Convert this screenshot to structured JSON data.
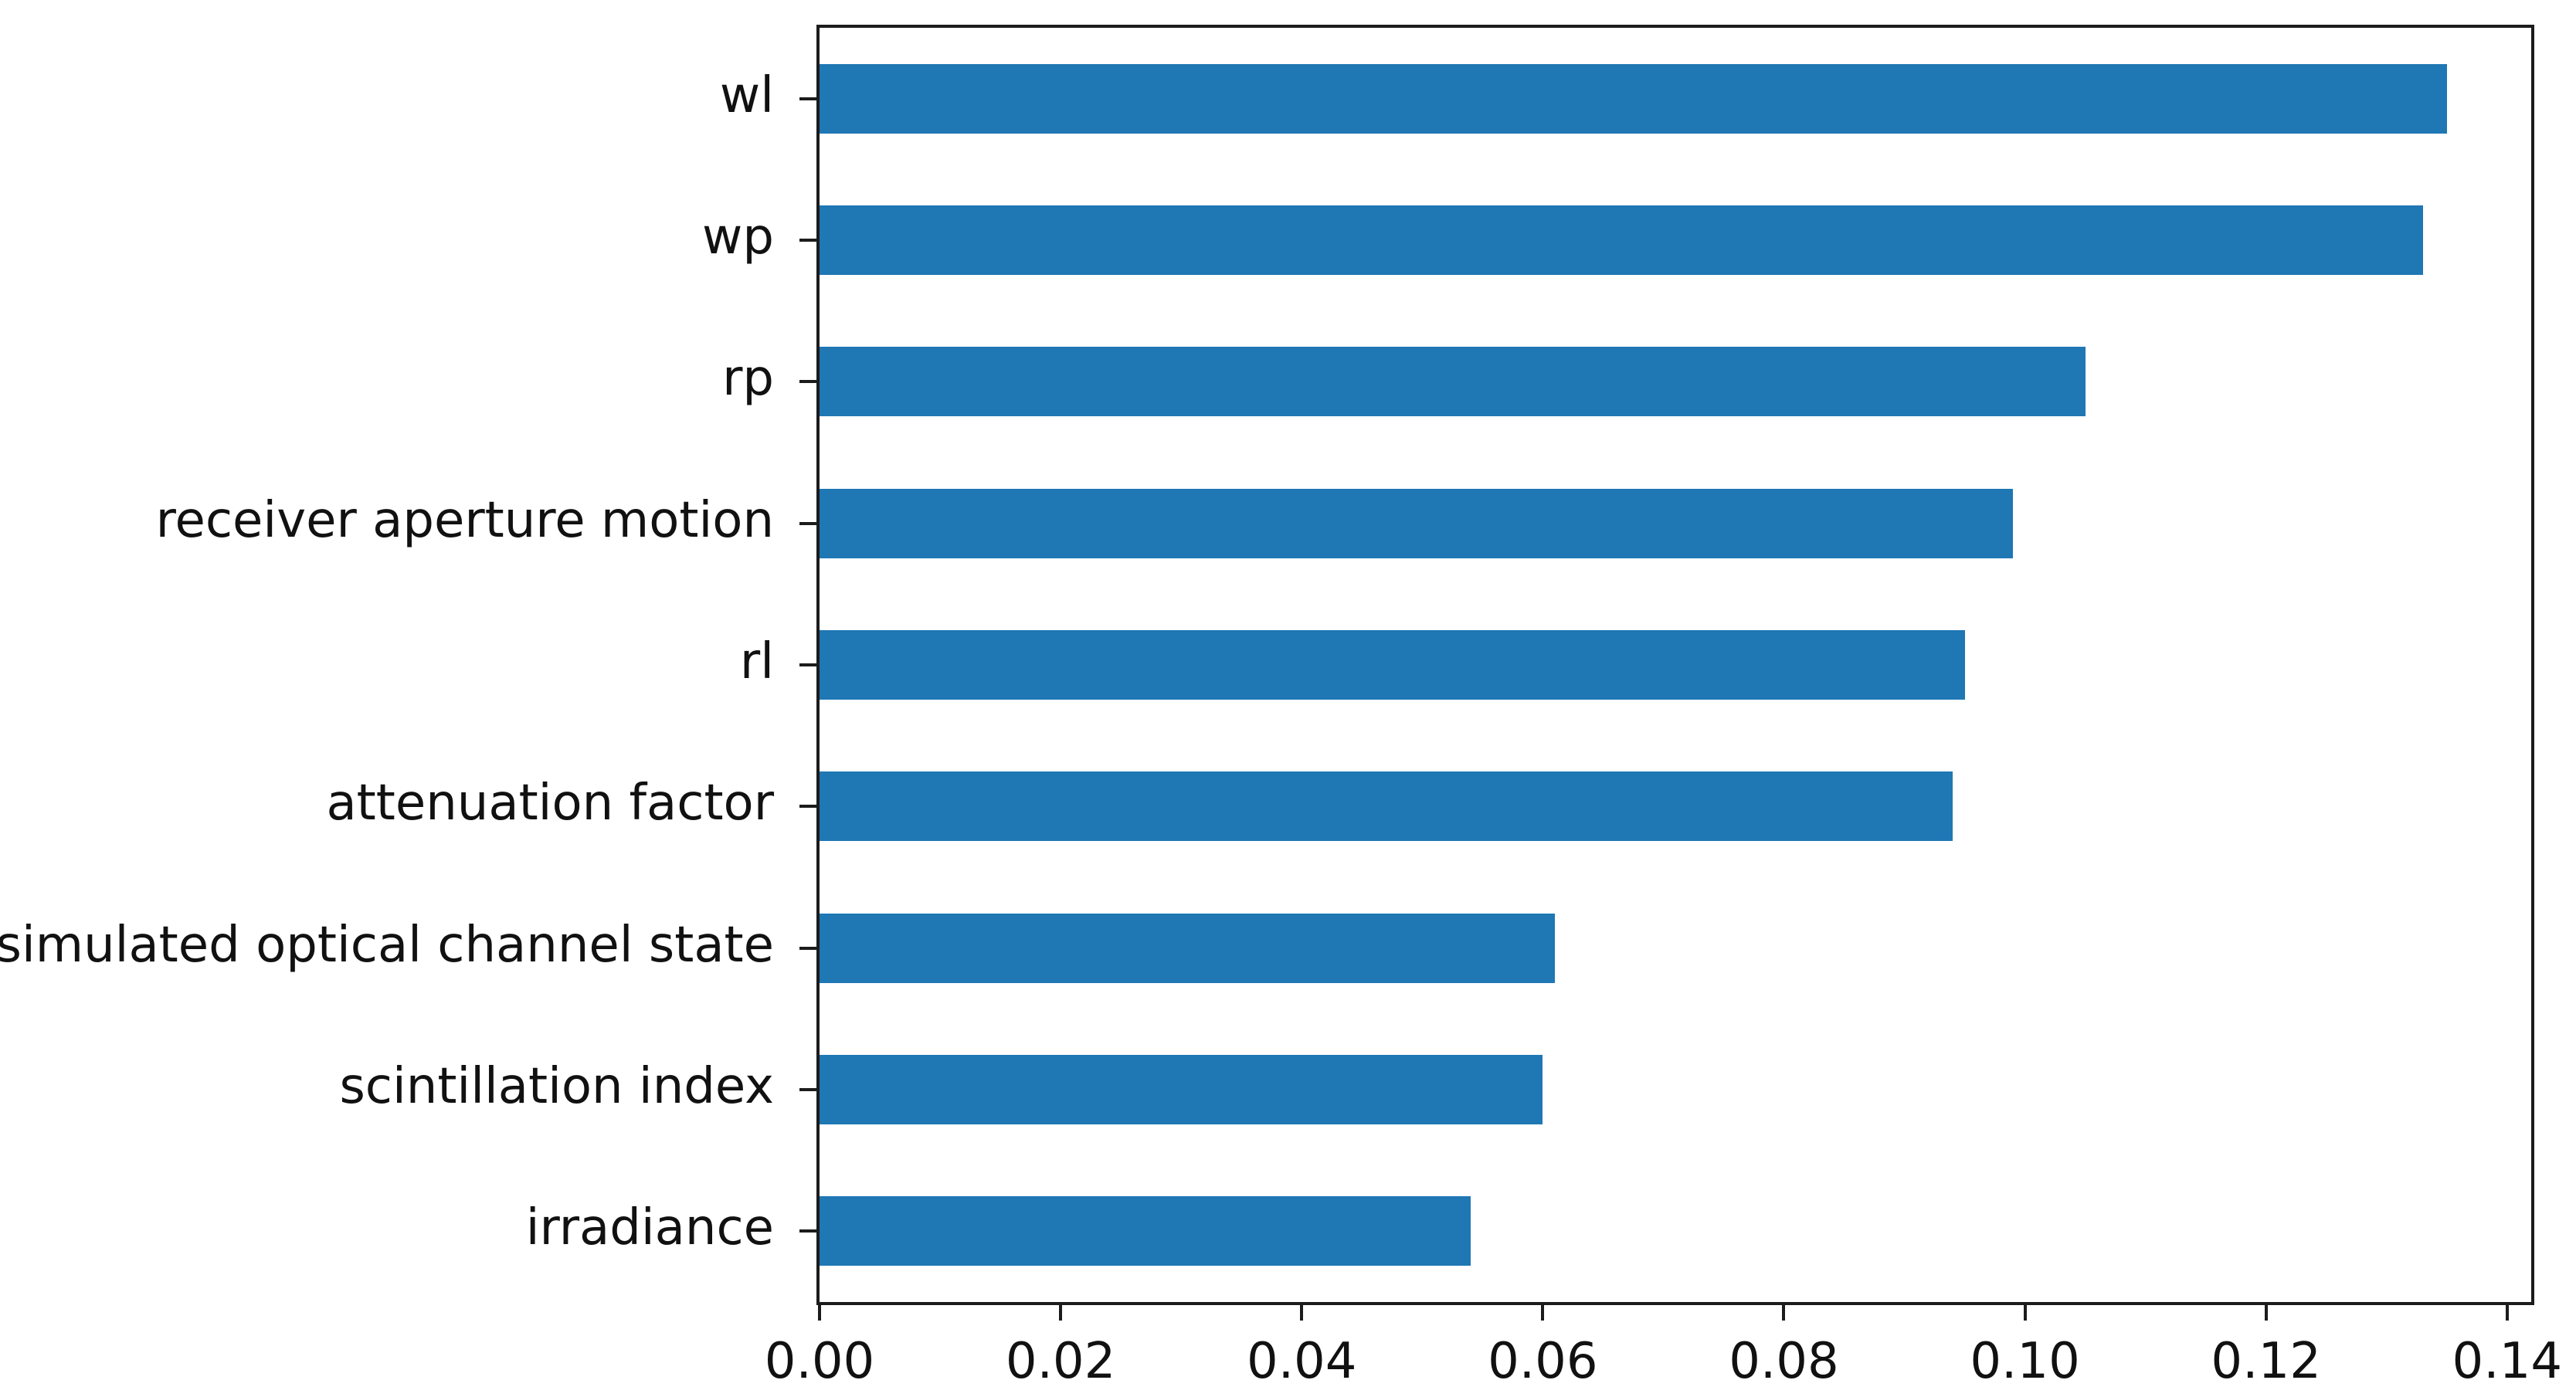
{
  "chart_data": {
    "type": "bar",
    "orientation": "horizontal",
    "title": "",
    "xlabel": "",
    "ylabel": "",
    "legend": null,
    "grid": false,
    "bar_color": "#1f77b4",
    "axis_color": "#1c1c1c",
    "text_color": "#111111",
    "categories": [
      "wl",
      "wp",
      "rp",
      "receiver aperture motion",
      "rl",
      "attenuation factor",
      "simulated optical channel state",
      "scintillation index",
      "irradiance"
    ],
    "values": [
      0.135,
      0.133,
      0.105,
      0.099,
      0.095,
      0.094,
      0.061,
      0.06,
      0.054
    ],
    "xlim": [
      0,
      0.142
    ],
    "x_ticks": [
      0.0,
      0.02,
      0.04,
      0.06,
      0.08,
      0.1,
      0.12,
      0.14
    ],
    "x_tick_labels": [
      "0.00",
      "0.02",
      "0.04",
      "0.06",
      "0.08",
      "0.10",
      "0.12",
      "0.14"
    ],
    "bar_fraction_of_slot": 0.49
  }
}
